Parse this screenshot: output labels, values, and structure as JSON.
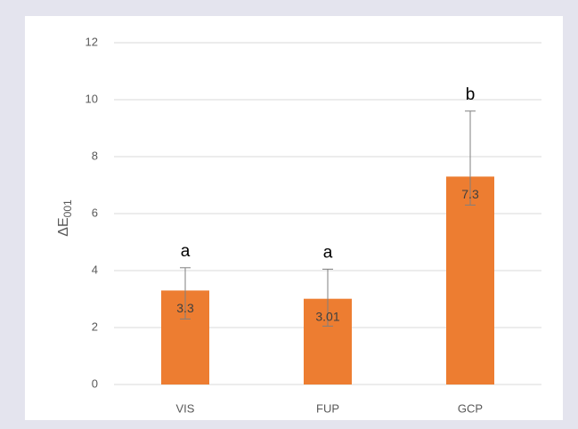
{
  "chart_data": {
    "type": "bar",
    "y_label": {
      "main": "ΔE",
      "sub": "001"
    },
    "categories": [
      "VIS",
      "FUP",
      "GCP"
    ],
    "values": [
      3.3,
      3.01,
      7.3
    ],
    "error_plus": [
      0.8,
      1.04,
      2.3
    ],
    "error_minus": [
      1.0,
      0.96,
      1.0
    ],
    "letters": [
      "a",
      "a",
      "b"
    ],
    "color": "#ed7d31",
    "ylim": [
      0,
      12
    ],
    "yticks": [
      0,
      2,
      4,
      6,
      8,
      10,
      12
    ],
    "grid": true
  }
}
